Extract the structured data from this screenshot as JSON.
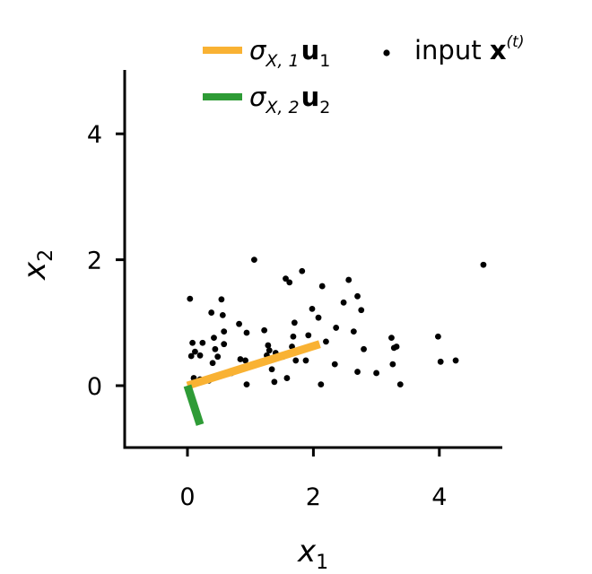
{
  "chart_data": {
    "type": "scatter",
    "xlabel": "x",
    "xlabel_sub": "1",
    "ylabel": "x",
    "ylabel_sub": "2",
    "xlim": [
      -1,
      5
    ],
    "ylim": [
      -1,
      5
    ],
    "xticks": [
      0,
      2,
      4
    ],
    "yticks": [
      0,
      2,
      4
    ],
    "grid": false,
    "legend_position": "top-right",
    "series": [
      {
        "name": "input x(t)",
        "label_parts": {
          "main": "input ",
          "bold": "x",
          "sup": "(t)"
        },
        "kind": "points",
        "color": "#000000",
        "points": [
          [
            0.04,
            1.38
          ],
          [
            0.08,
            0.68
          ],
          [
            0.06,
            0.47
          ],
          [
            0.12,
            0.54
          ],
          [
            0.2,
            0.48
          ],
          [
            0.24,
            0.68
          ],
          [
            0.1,
            0.12
          ],
          [
            0.2,
            0.1
          ],
          [
            0.38,
            1.16
          ],
          [
            0.54,
            1.37
          ],
          [
            0.56,
            1.12
          ],
          [
            0.42,
            0.76
          ],
          [
            0.44,
            0.58
          ],
          [
            0.48,
            0.46
          ],
          [
            0.4,
            0.36
          ],
          [
            0.34,
            0.08
          ],
          [
            0.46,
            0.14
          ],
          [
            0.58,
            0.66
          ],
          [
            0.58,
            0.86
          ],
          [
            0.7,
            0.2
          ],
          [
            0.82,
            0.98
          ],
          [
            0.84,
            0.42
          ],
          [
            0.92,
            0.4
          ],
          [
            0.94,
            0.84
          ],
          [
            0.94,
            0.02
          ],
          [
            1.06,
            2.0
          ],
          [
            1.22,
            0.88
          ],
          [
            1.26,
            0.48
          ],
          [
            1.28,
            0.64
          ],
          [
            1.3,
            0.56
          ],
          [
            1.34,
            0.26
          ],
          [
            1.38,
            0.06
          ],
          [
            1.4,
            0.52
          ],
          [
            1.52,
            0.46
          ],
          [
            1.56,
            1.7
          ],
          [
            1.58,
            0.12
          ],
          [
            1.62,
            1.64
          ],
          [
            1.66,
            0.62
          ],
          [
            1.68,
            0.78
          ],
          [
            1.7,
            1.0
          ],
          [
            1.72,
            0.4
          ],
          [
            1.82,
            1.82
          ],
          [
            1.84,
            0.58
          ],
          [
            1.88,
            0.4
          ],
          [
            1.92,
            0.8
          ],
          [
            1.98,
            1.22
          ],
          [
            2.08,
            1.08
          ],
          [
            2.12,
            0.02
          ],
          [
            2.14,
            1.58
          ],
          [
            2.2,
            0.7
          ],
          [
            2.34,
            0.34
          ],
          [
            2.36,
            0.92
          ],
          [
            2.48,
            1.32
          ],
          [
            2.56,
            1.68
          ],
          [
            2.64,
            0.86
          ],
          [
            2.7,
            1.42
          ],
          [
            2.7,
            0.22
          ],
          [
            2.76,
            1.2
          ],
          [
            2.8,
            0.58
          ],
          [
            3.0,
            0.2
          ],
          [
            3.24,
            0.76
          ],
          [
            3.26,
            0.34
          ],
          [
            3.28,
            0.6
          ],
          [
            3.32,
            0.62
          ],
          [
            3.38,
            0.02
          ],
          [
            3.98,
            0.78
          ],
          [
            4.02,
            0.38
          ],
          [
            4.26,
            0.4
          ],
          [
            4.7,
            1.92
          ]
        ]
      },
      {
        "name": "σX,1 u1",
        "label_parts": {
          "sigma": "σ",
          "sub": "X, 1",
          "bold": "u",
          "bold_sub": "1"
        },
        "kind": "segment",
        "color": "#f9b233",
        "from": [
          0.0,
          0.0
        ],
        "to": [
          2.1,
          0.66
        ]
      },
      {
        "name": "σX,2 u2",
        "label_parts": {
          "sigma": "σ",
          "sub": "X, 2",
          "bold": "u",
          "bold_sub": "2"
        },
        "kind": "segment",
        "color": "#2e9b36",
        "from": [
          0.0,
          0.0
        ],
        "to": [
          0.2,
          -0.62
        ]
      }
    ]
  }
}
